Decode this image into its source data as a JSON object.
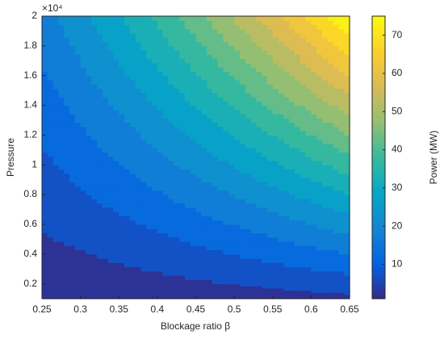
{
  "chart_data": {
    "type": "contour",
    "x_label": "Blockage ratio β",
    "y_label": "Pressure",
    "y_exponent": "×10⁴",
    "colorbar_label": "Power (MW)",
    "x": [
      0.25,
      0.3,
      0.35,
      0.4,
      0.45,
      0.5,
      0.55,
      0.6,
      0.65
    ],
    "y": [
      1000,
      2000,
      4000,
      6000,
      8000,
      10000,
      12000,
      14000,
      16000,
      18000,
      20000
    ],
    "z": [
      [
        0.9,
        1.2,
        1.5,
        1.8,
        2.2,
        2.5,
        2.9,
        3.3,
        3.8
      ],
      [
        1.8,
        2.4,
        3.0,
        3.6,
        4.3,
        5.1,
        5.8,
        6.7,
        7.5
      ],
      [
        3.6,
        4.7,
        5.9,
        7.2,
        8.6,
        10.1,
        11.7,
        13.3,
        15
      ],
      [
        5.4,
        7.1,
        8.9,
        10.9,
        13.0,
        15.2,
        17.5,
        20.0,
        22.5
      ],
      [
        7.2,
        9.4,
        11.9,
        14.5,
        17.3,
        20.2,
        23.4,
        26.6,
        30
      ],
      [
        8.9,
        11.8,
        14.8,
        18.1,
        21.6,
        25.3,
        29.2,
        33.3,
        37.5
      ],
      [
        10.7,
        14.1,
        17.8,
        21.7,
        25.9,
        30.4,
        35.0,
        39.9,
        45
      ],
      [
        12.5,
        16.5,
        20.7,
        25.3,
        30.2,
        35.4,
        40.9,
        46.6,
        52.5
      ],
      [
        14.3,
        18.8,
        23.7,
        29.0,
        34.6,
        40.5,
        46.7,
        53.2,
        60
      ],
      [
        16.1,
        21.2,
        26.7,
        32.6,
        38.9,
        45.5,
        52.5,
        59.9,
        67.5
      ],
      [
        17.9,
        23.5,
        29.6,
        36.2,
        43.2,
        50.6,
        58.4,
        66.5,
        75
      ]
    ],
    "levels": [
      0,
      5,
      10,
      15,
      20,
      25,
      30,
      35,
      40,
      45,
      50,
      55,
      60,
      65,
      70,
      75
    ],
    "colormap": [
      "#352a87",
      "#0363e1",
      "#1485d4",
      "#06a7c6",
      "#38b99e",
      "#92bf73",
      "#d9ba56",
      "#fcce2e",
      "#f9fb0e"
    ],
    "xlim": [
      0.25,
      0.65
    ],
    "xticks": [
      0.25,
      0.3,
      0.35,
      0.4,
      0.45,
      0.5,
      0.55,
      0.6,
      0.65
    ],
    "ylim": [
      1000,
      20000
    ],
    "yticks": [
      {
        "value": 2000,
        "label": "0.2"
      },
      {
        "value": 4000,
        "label": "0.4"
      },
      {
        "value": 6000,
        "label": "0.6"
      },
      {
        "value": 8000,
        "label": "0.8"
      },
      {
        "value": 10000,
        "label": "1"
      },
      {
        "value": 12000,
        "label": "1.2"
      },
      {
        "value": 14000,
        "label": "1.4"
      },
      {
        "value": 16000,
        "label": "1.6"
      },
      {
        "value": 18000,
        "label": "1.8"
      },
      {
        "value": 20000,
        "label": "2"
      }
    ],
    "clim": [
      1,
      75
    ],
    "cticks": [
      10,
      20,
      30,
      40,
      50,
      60,
      70
    ]
  }
}
